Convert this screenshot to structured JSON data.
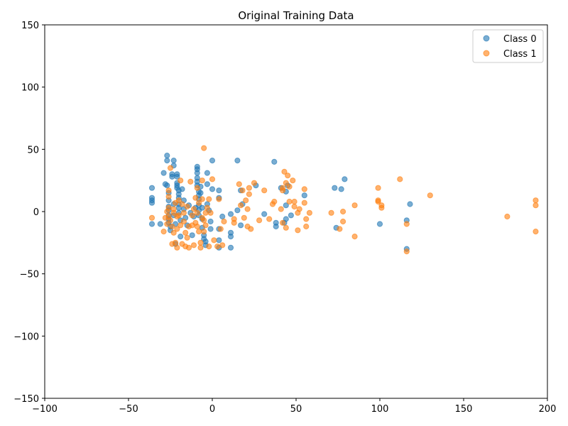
{
  "chart_data": {
    "type": "scatter",
    "title": "Original Training Data",
    "xlabel": "",
    "ylabel": "",
    "xlim": [
      -100,
      200
    ],
    "ylim": [
      -150,
      150
    ],
    "xticks": [
      -100,
      -50,
      0,
      50,
      100,
      150,
      200
    ],
    "yticks": [
      -150,
      -100,
      -50,
      0,
      50,
      100,
      150
    ],
    "grid": false,
    "legend_position": "top-right",
    "series": [
      {
        "name": "Class 0",
        "color": "#1f77b4",
        "points": [
          [
            -36,
            19
          ],
          [
            -36,
            11
          ],
          [
            -36,
            9
          ],
          [
            -36,
            7
          ],
          [
            -36,
            -10
          ],
          [
            -31,
            -10
          ],
          [
            -29,
            31
          ],
          [
            -28,
            22
          ],
          [
            -27,
            45
          ],
          [
            -27,
            41
          ],
          [
            -27,
            21
          ],
          [
            -26,
            15
          ],
          [
            -26,
            9
          ],
          [
            -26,
            4
          ],
          [
            -26,
            1
          ],
          [
            -26,
            -3
          ],
          [
            -26,
            -6
          ],
          [
            -26,
            -9
          ],
          [
            -25,
            -12
          ],
          [
            -25,
            -15
          ],
          [
            -24,
            28
          ],
          [
            -24,
            30
          ],
          [
            -23,
            41
          ],
          [
            -23,
            37
          ],
          [
            -23,
            6
          ],
          [
            -23,
            -3
          ],
          [
            -22,
            -10
          ],
          [
            -22,
            -26
          ],
          [
            -21,
            30
          ],
          [
            -21,
            28
          ],
          [
            -21,
            23
          ],
          [
            -21,
            21
          ],
          [
            -21,
            19
          ],
          [
            -20,
            17
          ],
          [
            -20,
            14
          ],
          [
            -20,
            11
          ],
          [
            -20,
            6
          ],
          [
            -20,
            3
          ],
          [
            -20,
            -1
          ],
          [
            -19,
            -7
          ],
          [
            -19,
            -20
          ],
          [
            -18,
            18
          ],
          [
            -17,
            9
          ],
          [
            -17,
            2
          ],
          [
            -16,
            -5
          ],
          [
            -15,
            -11
          ],
          [
            -14,
            5
          ],
          [
            -13,
            -1
          ],
          [
            -12,
            -19
          ],
          [
            -11,
            -4
          ],
          [
            -10,
            3
          ],
          [
            -9,
            36
          ],
          [
            -9,
            34
          ],
          [
            -9,
            31
          ],
          [
            -9,
            27
          ],
          [
            -9,
            24
          ],
          [
            -9,
            21
          ],
          [
            -8,
            16
          ],
          [
            -8,
            13
          ],
          [
            -8,
            10
          ],
          [
            -8,
            5
          ],
          [
            -8,
            1
          ],
          [
            -8,
            -3
          ],
          [
            -7,
            20
          ],
          [
            -7,
            15
          ],
          [
            -6,
            3
          ],
          [
            -6,
            -6
          ],
          [
            -6,
            -13
          ],
          [
            -5,
            -19
          ],
          [
            -5,
            -22
          ],
          [
            -4,
            -24
          ],
          [
            -4,
            -27
          ],
          [
            -3,
            31
          ],
          [
            -3,
            22
          ],
          [
            -3,
            6
          ],
          [
            -2,
            1
          ],
          [
            -1,
            -8
          ],
          [
            -1,
            -14
          ],
          [
            0,
            41
          ],
          [
            0,
            18
          ],
          [
            4,
            17
          ],
          [
            4,
            11
          ],
          [
            4,
            -14
          ],
          [
            4,
            -23
          ],
          [
            4,
            -29
          ],
          [
            6,
            -4
          ],
          [
            11,
            -2
          ],
          [
            11,
            -17
          ],
          [
            11,
            -20
          ],
          [
            11,
            -29
          ],
          [
            15,
            41
          ],
          [
            15,
            1
          ],
          [
            17,
            17
          ],
          [
            17,
            -11
          ],
          [
            18,
            6
          ],
          [
            26,
            21
          ],
          [
            31,
            -2
          ],
          [
            37,
            40
          ],
          [
            38,
            -9
          ],
          [
            38,
            -12
          ],
          [
            41,
            19
          ],
          [
            43,
            -9
          ],
          [
            44,
            5
          ],
          [
            44,
            -6
          ],
          [
            44,
            16
          ],
          [
            45,
            21
          ],
          [
            47,
            -3
          ],
          [
            55,
            13
          ],
          [
            73,
            19
          ],
          [
            74,
            -13
          ],
          [
            77,
            18
          ],
          [
            79,
            26
          ],
          [
            100,
            -10
          ],
          [
            116,
            -7
          ],
          [
            116,
            -30
          ],
          [
            118,
            6
          ]
        ]
      },
      {
        "name": "Class 1",
        "color": "#ff7f0e",
        "points": [
          [
            -36,
            -5
          ],
          [
            -29,
            -16
          ],
          [
            -28,
            -5
          ],
          [
            -27,
            0
          ],
          [
            -27,
            -10
          ],
          [
            -26,
            17
          ],
          [
            -26,
            12
          ],
          [
            -26,
            3
          ],
          [
            -26,
            -4
          ],
          [
            -25,
            35
          ],
          [
            -25,
            -7
          ],
          [
            -24,
            -12
          ],
          [
            -24,
            -26
          ],
          [
            -23,
            -17
          ],
          [
            -23,
            2
          ],
          [
            -23,
            -1
          ],
          [
            -22,
            -25
          ],
          [
            -22,
            7
          ],
          [
            -21,
            -4
          ],
          [
            -21,
            -14
          ],
          [
            -21,
            -29
          ],
          [
            -20,
            9
          ],
          [
            -20,
            -3
          ],
          [
            -19,
            -11
          ],
          [
            -19,
            25
          ],
          [
            -18,
            -26
          ],
          [
            -18,
            6
          ],
          [
            -17,
            -1
          ],
          [
            -17,
            -8
          ],
          [
            -16,
            -17
          ],
          [
            -16,
            -28
          ],
          [
            -15,
            -21
          ],
          [
            -15,
            4
          ],
          [
            -14,
            -29
          ],
          [
            -14,
            -12
          ],
          [
            -13,
            24
          ],
          [
            -12,
            -11
          ],
          [
            -12,
            -3
          ],
          [
            -11,
            -27
          ],
          [
            -11,
            2
          ],
          [
            -10,
            -9
          ],
          [
            -10,
            11
          ],
          [
            -9,
            19
          ],
          [
            -9,
            -1
          ],
          [
            -9,
            -12
          ],
          [
            -8,
            7
          ],
          [
            -8,
            -16
          ],
          [
            -7,
            -25
          ],
          [
            -7,
            -29
          ],
          [
            -6,
            25
          ],
          [
            -6,
            -5
          ],
          [
            -6,
            10
          ],
          [
            -5,
            51
          ],
          [
            -5,
            -7
          ],
          [
            -5,
            -16
          ],
          [
            -4,
            -1
          ],
          [
            -4,
            -11
          ],
          [
            -3,
            3
          ],
          [
            -2,
            10
          ],
          [
            -2,
            -28
          ],
          [
            -1,
            -1
          ],
          [
            0,
            26
          ],
          [
            1,
            -23
          ],
          [
            3,
            -28
          ],
          [
            4,
            10
          ],
          [
            5,
            -14
          ],
          [
            6,
            -27
          ],
          [
            7,
            -8
          ],
          [
            13,
            -6
          ],
          [
            13,
            -9
          ],
          [
            16,
            22
          ],
          [
            17,
            5
          ],
          [
            18,
            17
          ],
          [
            19,
            -5
          ],
          [
            20,
            9
          ],
          [
            21,
            2
          ],
          [
            21,
            -12
          ],
          [
            22,
            19
          ],
          [
            22,
            14
          ],
          [
            23,
            -14
          ],
          [
            25,
            23
          ],
          [
            28,
            -7
          ],
          [
            31,
            17
          ],
          [
            34,
            -6
          ],
          [
            36,
            6
          ],
          [
            37,
            8
          ],
          [
            41,
            2
          ],
          [
            42,
            17
          ],
          [
            42,
            19
          ],
          [
            42,
            -9
          ],
          [
            43,
            32
          ],
          [
            44,
            23
          ],
          [
            44,
            -13
          ],
          [
            45,
            29
          ],
          [
            46,
            8
          ],
          [
            46,
            20
          ],
          [
            48,
            25
          ],
          [
            49,
            8
          ],
          [
            49,
            4
          ],
          [
            51,
            -1
          ],
          [
            51,
            -15
          ],
          [
            52,
            2
          ],
          [
            55,
            18
          ],
          [
            55,
            7
          ],
          [
            56,
            -6
          ],
          [
            56,
            -12
          ],
          [
            58,
            -1
          ],
          [
            71,
            -1
          ],
          [
            76,
            -14
          ],
          [
            78,
            -8
          ],
          [
            78,
            0
          ],
          [
            85,
            5
          ],
          [
            85,
            -20
          ],
          [
            99,
            19
          ],
          [
            99,
            9
          ],
          [
            99,
            8
          ],
          [
            101,
            3
          ],
          [
            101,
            5
          ],
          [
            112,
            26
          ],
          [
            116,
            -10
          ],
          [
            116,
            -32
          ],
          [
            130,
            13
          ],
          [
            176,
            -4
          ],
          [
            193,
            9
          ],
          [
            193,
            5
          ],
          [
            193,
            -16
          ]
        ]
      }
    ]
  }
}
